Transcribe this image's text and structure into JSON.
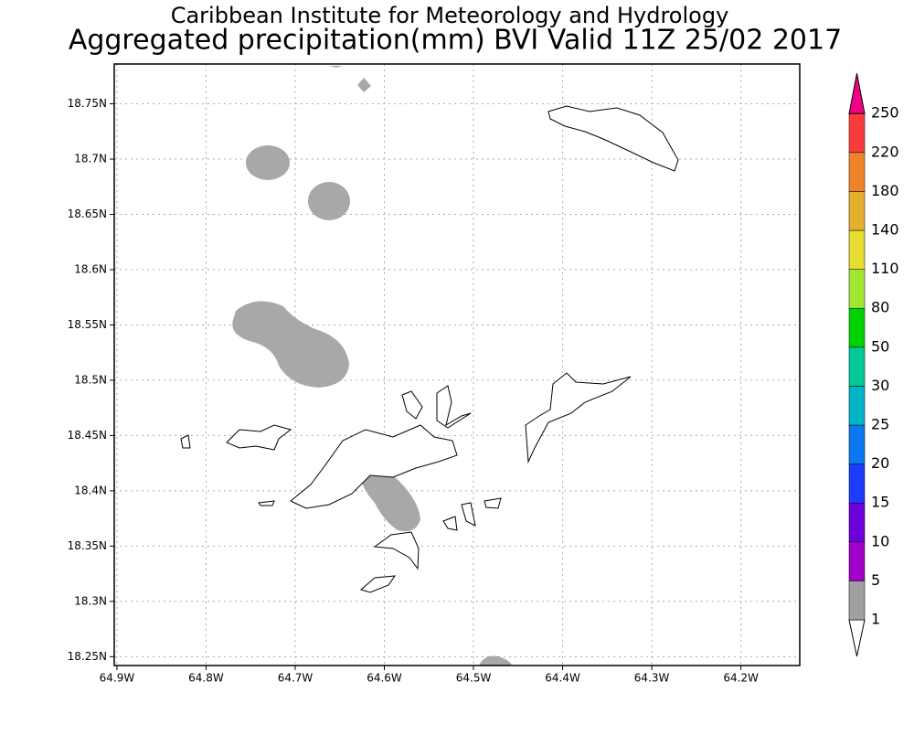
{
  "header": {
    "institute": "Caribbean Institute for Meteorology and Hydrology",
    "title": "Aggregated precipitation(mm) BVI Valid 11Z 25/02 2017"
  },
  "map": {
    "lonlim": [
      -64.903,
      -64.134
    ],
    "latlim": [
      18.242,
      18.786
    ],
    "lon_ticks": [
      {
        "value": -64.9,
        "label": "64.9W"
      },
      {
        "value": -64.8,
        "label": "64.8W"
      },
      {
        "value": -64.7,
        "label": "64.7W"
      },
      {
        "value": -64.6,
        "label": "64.6W"
      },
      {
        "value": -64.5,
        "label": "64.5W"
      },
      {
        "value": -64.4,
        "label": "64.4W"
      },
      {
        "value": -64.3,
        "label": "64.3W"
      },
      {
        "value": -64.2,
        "label": "64.2W"
      }
    ],
    "lat_ticks": [
      {
        "value": 18.25,
        "label": "18.25N"
      },
      {
        "value": 18.3,
        "label": "18.3N"
      },
      {
        "value": 18.35,
        "label": "18.35N"
      },
      {
        "value": 18.4,
        "label": "18.4N"
      },
      {
        "value": 18.45,
        "label": "18.45N"
      },
      {
        "value": 18.5,
        "label": "18.5N"
      },
      {
        "value": 18.55,
        "label": "18.55N"
      },
      {
        "value": 18.6,
        "label": "18.6N"
      },
      {
        "value": 18.65,
        "label": "18.65N"
      },
      {
        "value": 18.7,
        "label": "18.7N"
      },
      {
        "value": 18.75,
        "label": "18.75N"
      }
    ],
    "grid": true
  },
  "colorbar": {
    "levels": [
      1,
      5,
      10,
      15,
      20,
      25,
      30,
      50,
      80,
      110,
      140,
      180,
      220,
      250
    ],
    "colors": [
      "#ffffff",
      "#a0a0a0",
      "#a000c8",
      "#6e00dc",
      "#1e3cff",
      "#0a78f0",
      "#00b4c8",
      "#00c896",
      "#00d200",
      "#a0e632",
      "#e6dc32",
      "#e6af2d",
      "#f08228",
      "#fa3c3c",
      "#f00082"
    ]
  }
}
